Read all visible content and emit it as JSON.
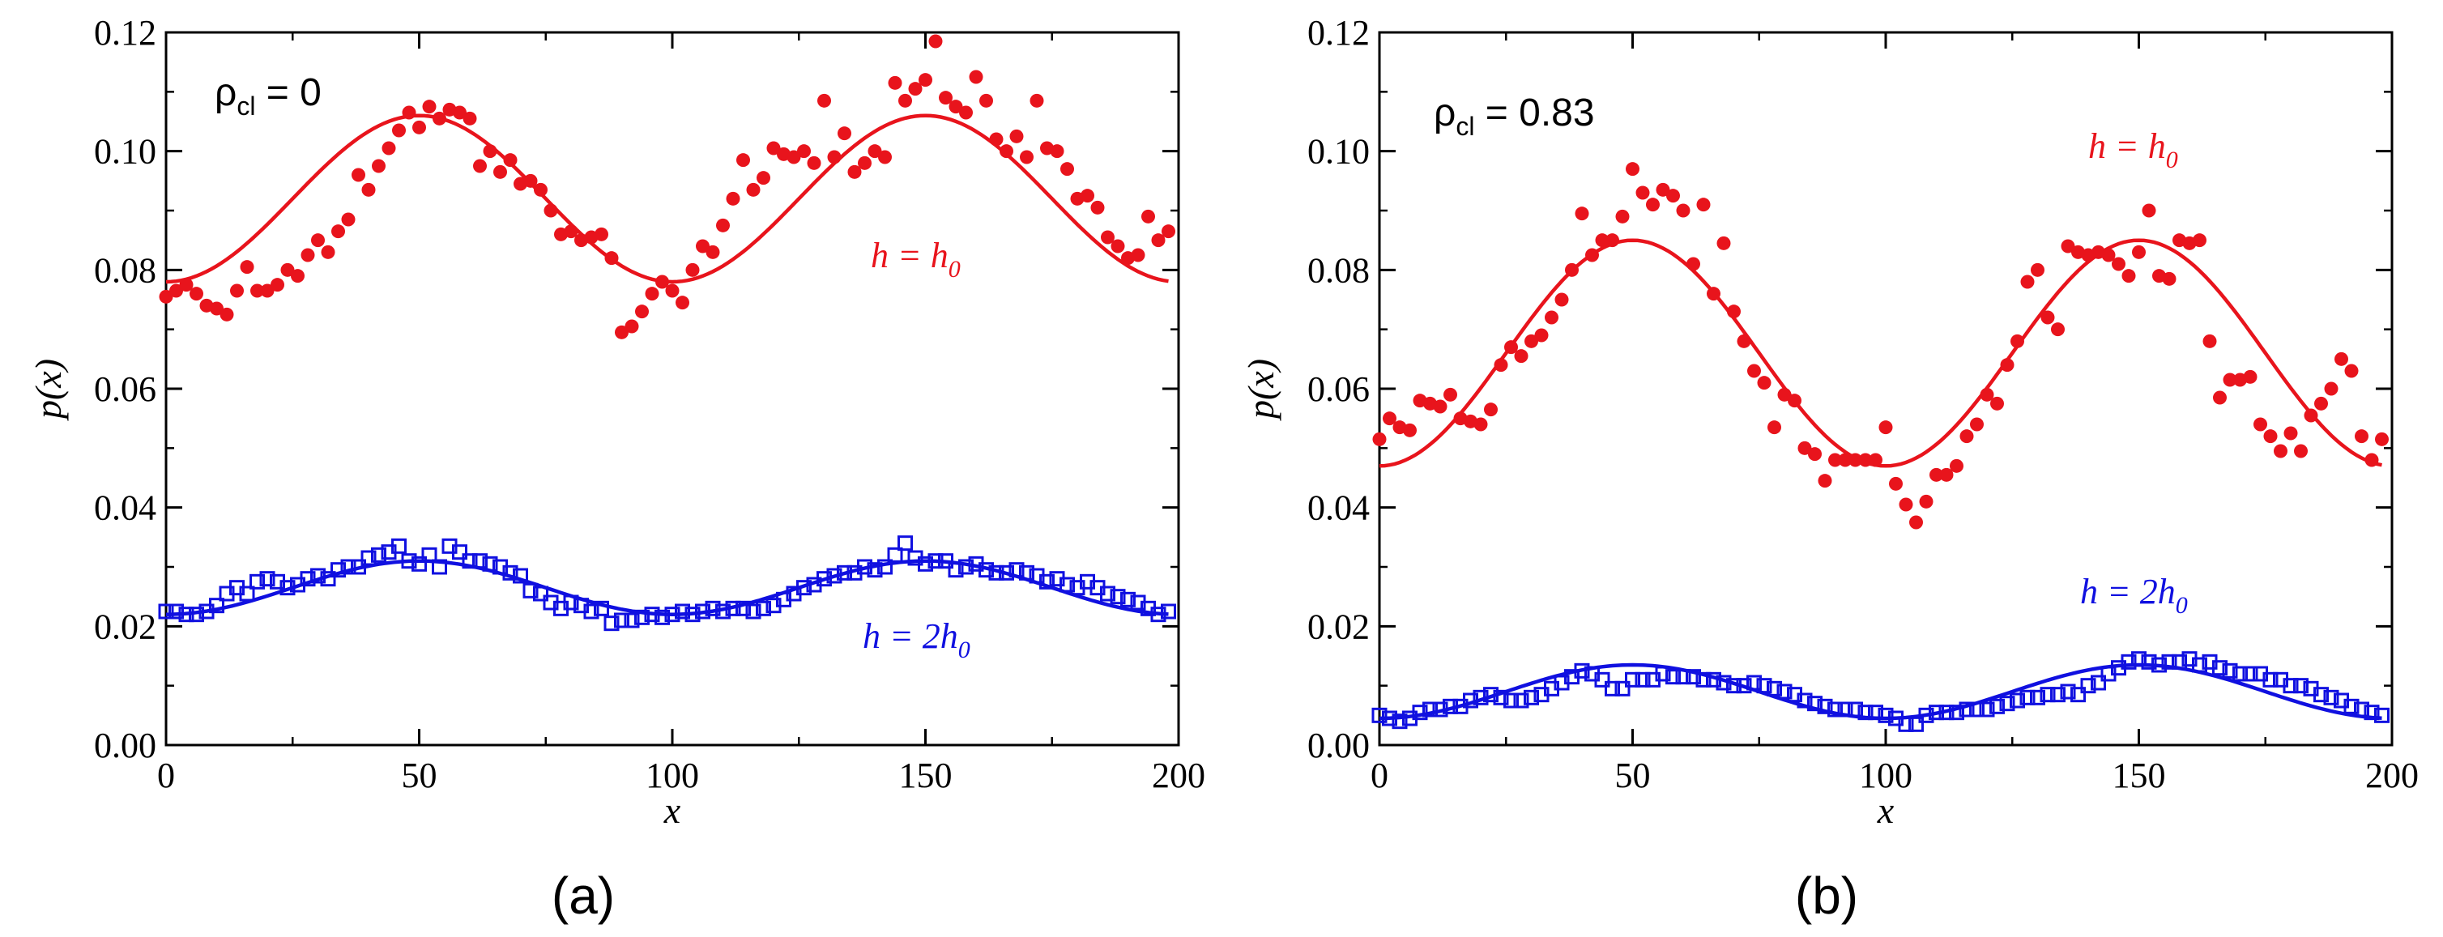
{
  "colors": {
    "h0": "#e8141c",
    "h2": "#1010e0",
    "axis": "#000000"
  },
  "chart_data": [
    {
      "type": "scatter",
      "panel_label": "(a)",
      "annotation": {
        "rho_symbol": "ρ",
        "rho_sub": "cl",
        "rho_rest": " = 0"
      },
      "xlabel": "x",
      "ylabel": "p(x)",
      "xlim": [
        0,
        200
      ],
      "ylim": [
        0,
        0.12
      ],
      "x_ticks": [
        0,
        50,
        100,
        150,
        200
      ],
      "x_tick_labels": [
        "0",
        "50",
        "100",
        "150",
        "200"
      ],
      "y_ticks": [
        0,
        0.02,
        0.04,
        0.06,
        0.08,
        0.1,
        0.12
      ],
      "y_tick_labels": [
        "0.00",
        "0.02",
        "0.04",
        "0.06",
        "0.08",
        "0.10",
        "0.12"
      ],
      "series": [
        {
          "name": "h = h0",
          "label_pre": "h = h",
          "label_sub": "0",
          "marker": "circle",
          "color": "#e8141c",
          "fit": {
            "mean": 0.092,
            "amplitude": 0.014,
            "period": 100,
            "peak_x": 50,
            "x_range": [
              0,
              198
            ]
          },
          "x": [
            0,
            2,
            4,
            6,
            8,
            10,
            12,
            14,
            16,
            18,
            20,
            22,
            24,
            26,
            28,
            30,
            32,
            34,
            36,
            38,
            40,
            42,
            44,
            46,
            48,
            50,
            52,
            54,
            56,
            58,
            60,
            62,
            64,
            66,
            68,
            70,
            72,
            74,
            76,
            78,
            80,
            82,
            84,
            86,
            88,
            90,
            92,
            94,
            96,
            98,
            100,
            102,
            104,
            106,
            108,
            110,
            112,
            114,
            116,
            118,
            120,
            122,
            124,
            126,
            128,
            130,
            132,
            134,
            136,
            138,
            140,
            142,
            144,
            146,
            148,
            150,
            152,
            154,
            156,
            158,
            160,
            162,
            164,
            166,
            168,
            170,
            172,
            174,
            176,
            178,
            180,
            182,
            184,
            186,
            188,
            190,
            192,
            194,
            196,
            198
          ],
          "y": [
            0.0755,
            0.0765,
            0.0775,
            0.076,
            0.074,
            0.0735,
            0.0725,
            0.0765,
            0.0805,
            0.0765,
            0.0765,
            0.0775,
            0.08,
            0.079,
            0.0825,
            0.085,
            0.083,
            0.0865,
            0.0885,
            0.096,
            0.0935,
            0.0975,
            0.1005,
            0.1035,
            0.1065,
            0.104,
            0.1075,
            0.1055,
            0.107,
            0.1065,
            0.1055,
            0.0975,
            0.1,
            0.0965,
            0.0985,
            0.0945,
            0.095,
            0.0935,
            0.09,
            0.086,
            0.0865,
            0.085,
            0.0855,
            0.086,
            0.082,
            0.0695,
            0.0705,
            0.073,
            0.076,
            0.078,
            0.0765,
            0.0745,
            0.08,
            0.084,
            0.083,
            0.0875,
            0.092,
            0.0985,
            0.0935,
            0.0955,
            0.1005,
            0.0995,
            0.099,
            0.1,
            0.098,
            0.1085,
            0.099,
            0.103,
            0.0965,
            0.098,
            0.1,
            0.099,
            0.1115,
            0.1085,
            0.1105,
            0.112,
            0.1185,
            0.109,
            0.1075,
            0.1065,
            0.1125,
            0.1085,
            0.102,
            0.1,
            0.1025,
            0.099,
            0.1085,
            0.1005,
            0.1,
            0.097,
            0.092,
            0.0925,
            0.0905,
            0.0855,
            0.084,
            0.082,
            0.0825,
            0.089,
            0.085,
            0.0865
          ]
        },
        {
          "name": "h = 2h0",
          "label_pre": "h = 2h",
          "label_sub": "0",
          "marker": "square",
          "color": "#1010e0",
          "fit": {
            "mean": 0.0265,
            "amplitude": 0.0045,
            "period": 100,
            "peak_x": 50,
            "x_range": [
              0,
              198
            ]
          },
          "x": [
            0,
            2,
            4,
            6,
            8,
            10,
            12,
            14,
            16,
            18,
            20,
            22,
            24,
            26,
            28,
            30,
            32,
            34,
            36,
            38,
            40,
            42,
            44,
            46,
            48,
            50,
            52,
            54,
            56,
            58,
            60,
            62,
            64,
            66,
            68,
            70,
            72,
            74,
            76,
            78,
            80,
            82,
            84,
            86,
            88,
            90,
            92,
            94,
            96,
            98,
            100,
            102,
            104,
            106,
            108,
            110,
            112,
            114,
            116,
            118,
            120,
            122,
            124,
            126,
            128,
            130,
            132,
            134,
            136,
            138,
            140,
            142,
            144,
            146,
            148,
            150,
            152,
            154,
            156,
            158,
            160,
            162,
            164,
            166,
            168,
            170,
            172,
            174,
            176,
            178,
            180,
            182,
            184,
            186,
            188,
            190,
            192,
            194,
            196,
            198
          ],
          "y": [
            0.0225,
            0.0225,
            0.022,
            0.022,
            0.0225,
            0.0235,
            0.0255,
            0.0265,
            0.0255,
            0.0275,
            0.028,
            0.0275,
            0.0265,
            0.027,
            0.028,
            0.0285,
            0.028,
            0.0295,
            0.03,
            0.03,
            0.0315,
            0.032,
            0.0325,
            0.0335,
            0.031,
            0.0305,
            0.032,
            0.03,
            0.0335,
            0.0325,
            0.031,
            0.031,
            0.0305,
            0.03,
            0.029,
            0.0285,
            0.026,
            0.0255,
            0.024,
            0.023,
            0.024,
            0.0235,
            0.0225,
            0.023,
            0.0205,
            0.021,
            0.021,
            0.0215,
            0.022,
            0.0215,
            0.022,
            0.0225,
            0.022,
            0.0225,
            0.023,
            0.0225,
            0.023,
            0.023,
            0.0225,
            0.023,
            0.0235,
            0.0245,
            0.0255,
            0.0265,
            0.027,
            0.028,
            0.0285,
            0.029,
            0.029,
            0.03,
            0.0295,
            0.03,
            0.032,
            0.034,
            0.0315,
            0.0305,
            0.031,
            0.031,
            0.0295,
            0.03,
            0.0305,
            0.0295,
            0.029,
            0.029,
            0.0295,
            0.029,
            0.0285,
            0.0275,
            0.028,
            0.027,
            0.0265,
            0.0275,
            0.0265,
            0.0255,
            0.025,
            0.0245,
            0.024,
            0.023,
            0.022,
            0.0225
          ]
        }
      ]
    },
    {
      "type": "scatter",
      "panel_label": "(b)",
      "annotation": {
        "rho_symbol": "ρ",
        "rho_sub": "cl",
        "rho_rest": " = 0.83"
      },
      "xlabel": "x",
      "ylabel": "p(x)",
      "xlim": [
        0,
        200
      ],
      "ylim": [
        0,
        0.12
      ],
      "x_ticks": [
        0,
        50,
        100,
        150,
        200
      ],
      "x_tick_labels": [
        "0",
        "50",
        "100",
        "150",
        "200"
      ],
      "y_ticks": [
        0,
        0.02,
        0.04,
        0.06,
        0.08,
        0.1,
        0.12
      ],
      "y_tick_labels": [
        "0.00",
        "0.02",
        "0.04",
        "0.06",
        "0.08",
        "0.10",
        "0.12"
      ],
      "series": [
        {
          "name": "h = h0",
          "label_pre": "h = h",
          "label_sub": "0",
          "marker": "circle",
          "color": "#e8141c",
          "fit": {
            "mean": 0.066,
            "amplitude": 0.019,
            "period": 100,
            "peak_x": 50,
            "x_range": [
              0,
              198
            ]
          },
          "x": [
            0,
            2,
            4,
            6,
            8,
            10,
            12,
            14,
            16,
            18,
            20,
            22,
            24,
            26,
            28,
            30,
            32,
            34,
            36,
            38,
            40,
            42,
            44,
            46,
            48,
            50,
            52,
            54,
            56,
            58,
            60,
            62,
            64,
            66,
            68,
            70,
            72,
            74,
            76,
            78,
            80,
            82,
            84,
            86,
            88,
            90,
            92,
            94,
            96,
            98,
            100,
            102,
            104,
            106,
            108,
            110,
            112,
            114,
            116,
            118,
            120,
            122,
            124,
            126,
            128,
            130,
            132,
            134,
            136,
            138,
            140,
            142,
            144,
            146,
            148,
            150,
            152,
            154,
            156,
            158,
            160,
            162,
            164,
            166,
            168,
            170,
            172,
            174,
            176,
            178,
            180,
            182,
            184,
            186,
            188,
            190,
            192,
            194,
            196,
            198
          ],
          "y": [
            0.0515,
            0.055,
            0.0535,
            0.053,
            0.058,
            0.0575,
            0.057,
            0.059,
            0.055,
            0.0545,
            0.054,
            0.0565,
            0.064,
            0.067,
            0.0655,
            0.068,
            0.069,
            0.072,
            0.075,
            0.08,
            0.0895,
            0.0825,
            0.085,
            0.085,
            0.089,
            0.097,
            0.093,
            0.091,
            0.0935,
            0.0925,
            0.09,
            0.081,
            0.091,
            0.076,
            0.0845,
            0.073,
            0.068,
            0.063,
            0.061,
            0.0535,
            0.059,
            0.058,
            0.05,
            0.049,
            0.0445,
            0.048,
            0.048,
            0.048,
            0.048,
            0.048,
            0.0535,
            0.044,
            0.0405,
            0.0375,
            0.041,
            0.0455,
            0.0455,
            0.047,
            0.052,
            0.054,
            0.059,
            0.0575,
            0.064,
            0.068,
            0.078,
            0.08,
            0.072,
            0.07,
            0.084,
            0.083,
            0.0825,
            0.083,
            0.0825,
            0.081,
            0.079,
            0.083,
            0.09,
            0.079,
            0.0785,
            0.085,
            0.0845,
            0.085,
            0.068,
            0.0585,
            0.0615,
            0.0615,
            0.062,
            0.054,
            0.052,
            0.0495,
            0.0525,
            0.0495,
            0.0555,
            0.0575,
            0.06,
            0.065,
            0.063,
            0.052,
            0.048,
            0.0515
          ]
        },
        {
          "name": "h = 2h0",
          "label_pre": "h = 2h",
          "label_sub": "0",
          "marker": "square",
          "color": "#1010e0",
          "fit": {
            "mean": 0.009,
            "amplitude": 0.0045,
            "period": 100,
            "peak_x": 50,
            "x_range": [
              0,
              198
            ]
          },
          "x": [
            0,
            2,
            4,
            6,
            8,
            10,
            12,
            14,
            16,
            18,
            20,
            22,
            24,
            26,
            28,
            30,
            32,
            34,
            36,
            38,
            40,
            42,
            44,
            46,
            48,
            50,
            52,
            54,
            56,
            58,
            60,
            62,
            64,
            66,
            68,
            70,
            72,
            74,
            76,
            78,
            80,
            82,
            84,
            86,
            88,
            90,
            92,
            94,
            96,
            98,
            100,
            102,
            104,
            106,
            108,
            110,
            112,
            114,
            116,
            118,
            120,
            122,
            124,
            126,
            128,
            130,
            132,
            134,
            136,
            138,
            140,
            142,
            144,
            146,
            148,
            150,
            152,
            154,
            156,
            158,
            160,
            162,
            164,
            166,
            168,
            170,
            172,
            174,
            176,
            178,
            180,
            182,
            184,
            186,
            188,
            190,
            192,
            194,
            196,
            198
          ],
          "y": [
            0.005,
            0.0045,
            0.004,
            0.0045,
            0.0055,
            0.006,
            0.006,
            0.0065,
            0.0065,
            0.0075,
            0.008,
            0.0085,
            0.008,
            0.0075,
            0.0075,
            0.008,
            0.0085,
            0.0095,
            0.0105,
            0.0115,
            0.0125,
            0.012,
            0.011,
            0.0095,
            0.0095,
            0.011,
            0.011,
            0.011,
            0.012,
            0.0115,
            0.0115,
            0.0115,
            0.011,
            0.011,
            0.0105,
            0.01,
            0.01,
            0.0105,
            0.01,
            0.0095,
            0.009,
            0.0085,
            0.0075,
            0.007,
            0.0065,
            0.006,
            0.006,
            0.006,
            0.0055,
            0.0055,
            0.005,
            0.0045,
            0.0035,
            0.0035,
            0.005,
            0.0055,
            0.0055,
            0.0055,
            0.006,
            0.006,
            0.006,
            0.0065,
            0.007,
            0.0075,
            0.008,
            0.008,
            0.0085,
            0.0085,
            0.009,
            0.0085,
            0.01,
            0.0105,
            0.012,
            0.013,
            0.014,
            0.0145,
            0.014,
            0.0135,
            0.014,
            0.014,
            0.0145,
            0.0135,
            0.014,
            0.013,
            0.0125,
            0.012,
            0.012,
            0.012,
            0.011,
            0.011,
            0.01,
            0.01,
            0.0095,
            0.0085,
            0.008,
            0.0075,
            0.0065,
            0.006,
            0.0055,
            0.005
          ]
        }
      ]
    }
  ]
}
